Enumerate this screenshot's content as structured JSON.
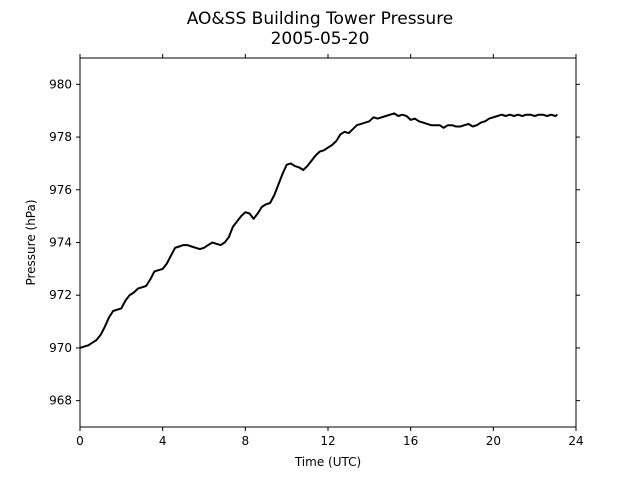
{
  "chart_data": {
    "type": "line",
    "title": "AO&SS Building Tower Pressure",
    "subtitle": "2005-05-20",
    "xlabel": "Time (UTC)",
    "ylabel": "Pressure (hPa)",
    "xlim": [
      0,
      24
    ],
    "ylim": [
      967,
      981
    ],
    "xticks": [
      0,
      4,
      8,
      12,
      16,
      20,
      24
    ],
    "yticks": [
      968,
      970,
      972,
      974,
      976,
      978,
      980
    ],
    "grid": false,
    "legend": "none",
    "series": [
      {
        "color": "#000000",
        "x": [
          0.0,
          0.2,
          0.4,
          0.6,
          0.8,
          1.0,
          1.2,
          1.4,
          1.6,
          1.8,
          2.0,
          2.2,
          2.4,
          2.6,
          2.8,
          3.0,
          3.2,
          3.4,
          3.6,
          3.8,
          4.0,
          4.2,
          4.4,
          4.6,
          4.8,
          5.0,
          5.2,
          5.4,
          5.6,
          5.8,
          6.0,
          6.2,
          6.4,
          6.6,
          6.8,
          7.0,
          7.2,
          7.4,
          7.6,
          7.8,
          8.0,
          8.2,
          8.4,
          8.6,
          8.8,
          9.0,
          9.2,
          9.4,
          9.6,
          9.8,
          10.0,
          10.2,
          10.4,
          10.6,
          10.8,
          11.0,
          11.2,
          11.4,
          11.6,
          11.8,
          12.0,
          12.2,
          12.4,
          12.6,
          12.8,
          13.0,
          13.2,
          13.4,
          13.6,
          13.8,
          14.0,
          14.2,
          14.4,
          14.6,
          14.8,
          15.0,
          15.2,
          15.4,
          15.6,
          15.8,
          16.0,
          16.2,
          16.4,
          16.6,
          16.8,
          17.0,
          17.2,
          17.4,
          17.6,
          17.8,
          18.0,
          18.2,
          18.4,
          18.6,
          18.8,
          19.0,
          19.2,
          19.4,
          19.6,
          19.8,
          20.0,
          20.2,
          20.4,
          20.6,
          20.8,
          21.0,
          21.2,
          21.4,
          21.6,
          21.8,
          22.0,
          22.2,
          22.4,
          22.6,
          22.8,
          23.0,
          23.1
        ],
        "y": [
          970.0,
          970.05,
          970.1,
          970.2,
          970.3,
          970.5,
          970.8,
          971.15,
          971.4,
          971.45,
          971.5,
          971.8,
          972.0,
          972.1,
          972.25,
          972.3,
          972.35,
          972.6,
          972.9,
          972.95,
          973.0,
          973.2,
          973.5,
          973.8,
          973.85,
          973.9,
          973.9,
          973.85,
          973.8,
          973.75,
          973.8,
          973.9,
          974.0,
          973.95,
          973.9,
          974.0,
          974.2,
          974.6,
          974.8,
          975.0,
          975.15,
          975.1,
          974.9,
          975.1,
          975.35,
          975.45,
          975.5,
          975.8,
          976.2,
          976.6,
          976.95,
          977.0,
          976.9,
          976.85,
          976.75,
          976.9,
          977.1,
          977.3,
          977.45,
          977.5,
          977.6,
          977.7,
          977.85,
          978.1,
          978.2,
          978.15,
          978.3,
          978.45,
          978.5,
          978.55,
          978.6,
          978.75,
          978.7,
          978.75,
          978.8,
          978.85,
          978.9,
          978.8,
          978.85,
          978.8,
          978.65,
          978.7,
          978.6,
          978.55,
          978.5,
          978.45,
          978.45,
          978.45,
          978.35,
          978.45,
          978.45,
          978.4,
          978.4,
          978.45,
          978.5,
          978.4,
          978.45,
          978.55,
          978.6,
          978.7,
          978.75,
          978.8,
          978.85,
          978.8,
          978.85,
          978.8,
          978.85,
          978.8,
          978.85,
          978.85,
          978.8,
          978.85,
          978.85,
          978.8,
          978.85,
          978.8,
          978.85
        ]
      }
    ]
  }
}
